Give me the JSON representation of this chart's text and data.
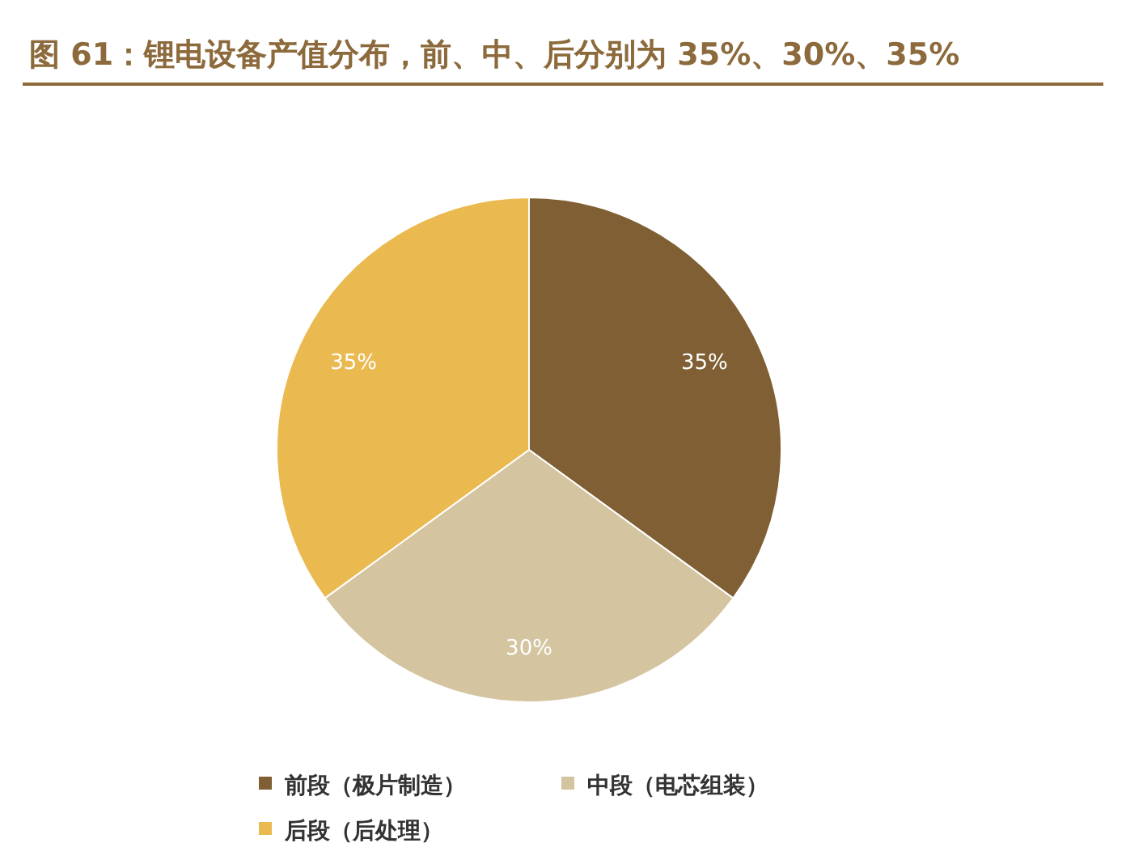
{
  "chart_data": {
    "type": "pie",
    "title": "图 61：锂电设备产值分布，前、中、后分别为 35%、30%、35%",
    "categories": [
      "前段（极片制造）",
      "中段（电芯组装）",
      "后段（后处理）"
    ],
    "values": [
      35,
      30,
      35
    ],
    "colors": [
      "#7f5f33",
      "#d4c4a0",
      "#eaba50"
    ],
    "value_labels": [
      "35%",
      "30%",
      "35%"
    ],
    "legend": "bottom"
  }
}
